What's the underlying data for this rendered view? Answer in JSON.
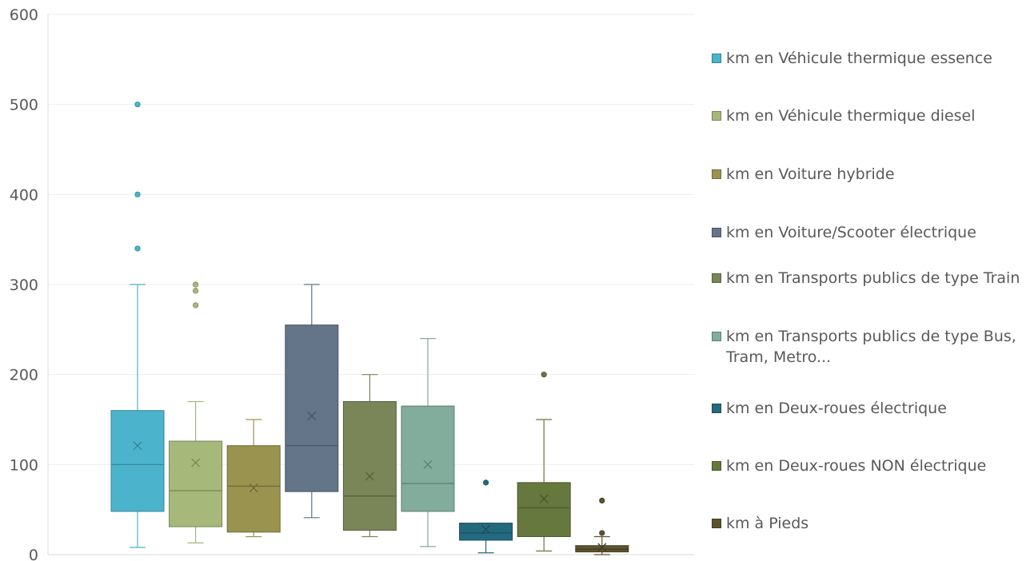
{
  "chart_data": {
    "type": "boxplot",
    "title": "",
    "xlabel": "",
    "ylabel": "",
    "ylim": [
      0,
      600
    ],
    "yticks": [
      0,
      100,
      200,
      300,
      400,
      500,
      600
    ],
    "grid": true,
    "legend_position": "right",
    "series": [
      {
        "name": "km en Véhicule thermique essence",
        "color": "#4bb4cc",
        "min": 8,
        "q1": 48,
        "median": 100,
        "q3": 160,
        "max": 300,
        "mean": 121,
        "outliers": [
          340,
          400,
          500
        ]
      },
      {
        "name": "km en Véhicule thermique diesel",
        "color": "#a6b97a",
        "min": 13,
        "q1": 31,
        "median": 71,
        "q3": 126,
        "max": 170,
        "mean": 102,
        "outliers": [
          277,
          293,
          300
        ]
      },
      {
        "name": "km en Voiture hybride",
        "color": "#9a9350",
        "min": 20,
        "q1": 25,
        "median": 76,
        "q3": 121,
        "max": 150,
        "mean": 74,
        "outliers": []
      },
      {
        "name": "km en Voiture/Scooter électrique",
        "color": "#647589",
        "min": 41,
        "q1": 70,
        "median": 121,
        "q3": 255,
        "max": 300,
        "mean": 154,
        "outliers": []
      },
      {
        "name": "km en Transports publics de type Train",
        "color": "#7a8558",
        "min": 20,
        "q1": 27,
        "median": 65,
        "q3": 170,
        "max": 200,
        "mean": 87,
        "outliers": []
      },
      {
        "name": "km en Transports publics de type Bus, Tram, Metro...",
        "color": "#82ac9c",
        "min": 9,
        "q1": 48,
        "median": 79,
        "q3": 165,
        "max": 240,
        "mean": 100,
        "outliers": []
      },
      {
        "name": "km en Deux-roues électrique",
        "color": "#246a7e",
        "min": 2,
        "q1": 16,
        "median": 24,
        "q3": 35,
        "max": 35,
        "mean": 28,
        "outliers": [
          80
        ]
      },
      {
        "name": "km en Deux-roues NON électrique",
        "color": "#66783d",
        "min": 4,
        "q1": 20,
        "median": 52,
        "q3": 80,
        "max": 150,
        "mean": 62,
        "outliers": [
          200
        ]
      },
      {
        "name": "km à Pieds",
        "color": "#5c5330",
        "min": 0,
        "q1": 3,
        "median": 6,
        "q3": 10,
        "max": 20,
        "mean": 8,
        "outliers": [
          24,
          60
        ]
      }
    ]
  }
}
